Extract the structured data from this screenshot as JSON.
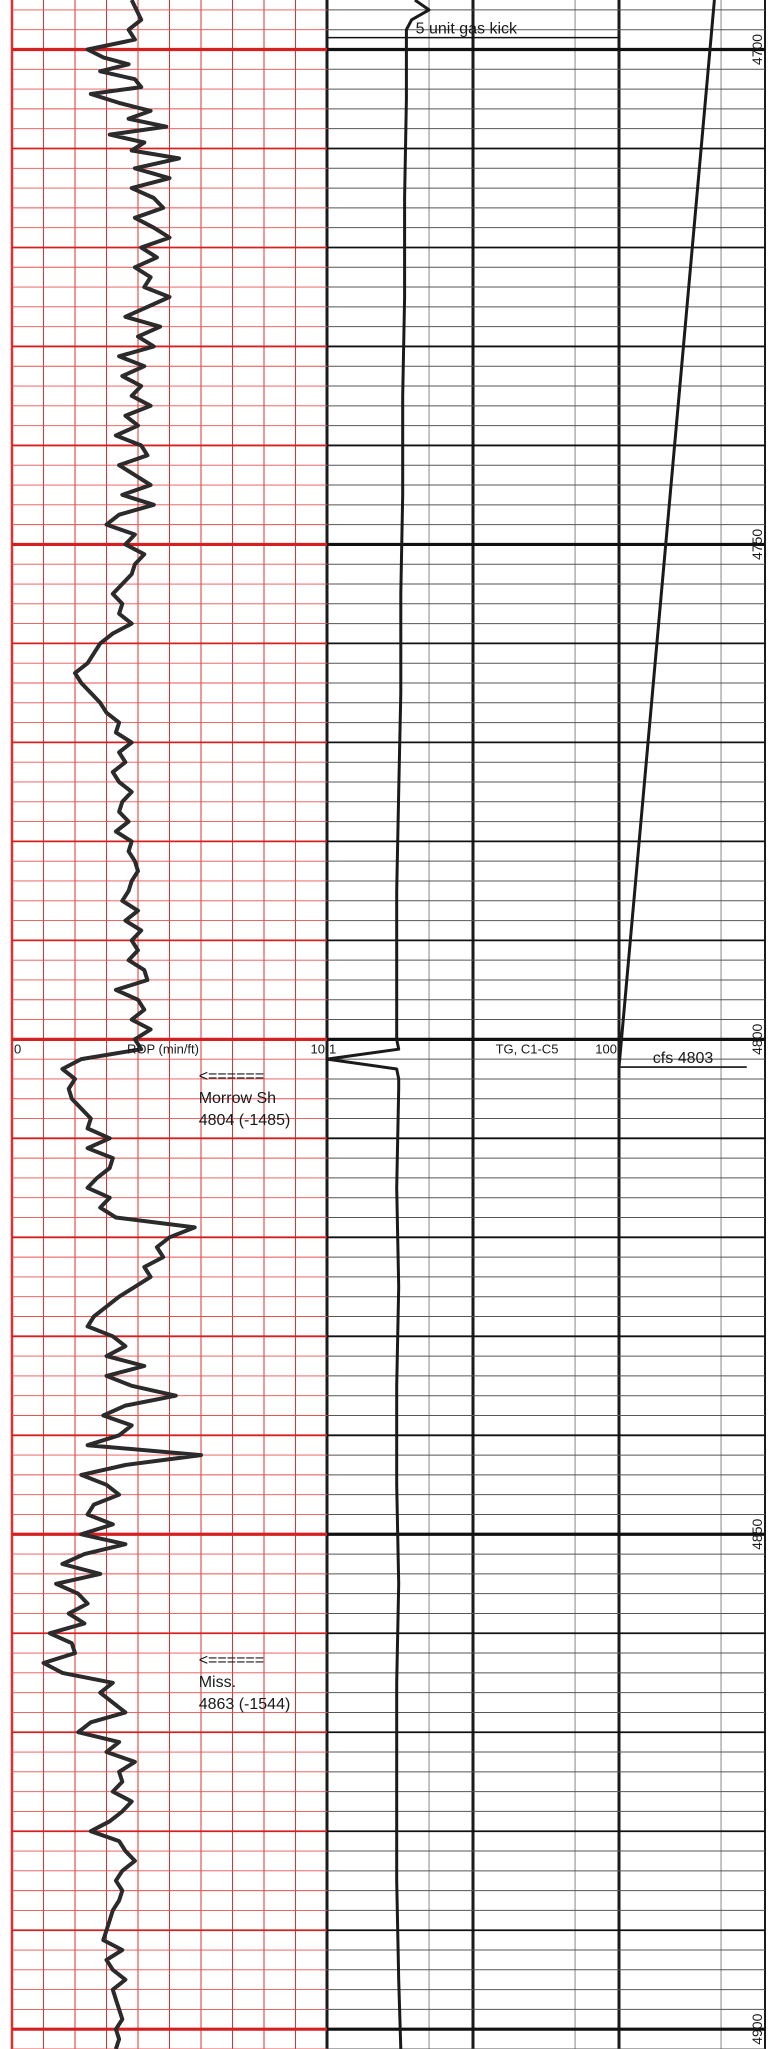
{
  "chart_data": {
    "type": "line",
    "depth_axis": {
      "range": [
        4695,
        4902
      ],
      "ticks": [
        4700,
        4750,
        4800,
        4850,
        4900
      ]
    },
    "tracks": [
      {
        "name": "ROP (min/ft)",
        "scale_label_left": "0",
        "scale_label_right": "10",
        "xlim": [
          0,
          10
        ],
        "x_scale": "linear",
        "grid": true,
        "grid_color": "#e03030",
        "curve_color": "#2b2b2b"
      },
      {
        "name": "TG, C1-C5",
        "scale_label_left": "1",
        "scale_label_right": "100",
        "xlim": [
          1,
          1000
        ],
        "x_scale": "log",
        "grid": true,
        "grid_color": "#444444",
        "curve_color": "#1a1a1a"
      }
    ],
    "series": [
      {
        "track": 0,
        "depth": [
          4695,
          4697,
          4698,
          4699,
          4700,
          4700.8,
          4701.5,
          4702.2,
          4703,
          4703.8,
          4704.5,
          4705.4,
          4706.2,
          4707,
          4707.8,
          4708.6,
          4709.4,
          4710.2,
          4711,
          4712,
          4713,
          4714,
          4715,
          4716,
          4717,
          4718,
          4719,
          4720,
          4721,
          4722,
          4723,
          4724,
          4725,
          4726,
          4727,
          4728,
          4729,
          4730,
          4731,
          4732,
          4733,
          4734,
          4735,
          4736,
          4737,
          4738,
          4739,
          4740,
          4741,
          4742,
          4743,
          4744,
          4745,
          4746,
          4747,
          4748,
          4749,
          4750,
          4751,
          4752,
          4753,
          4754,
          4755,
          4756,
          4757,
          4758,
          4759,
          4760,
          4761,
          4762,
          4763,
          4764,
          4765,
          4766,
          4767,
          4768,
          4769,
          4770,
          4771,
          4772,
          4773,
          4774,
          4775,
          4776,
          4777,
          4778,
          4779,
          4780,
          4781,
          4782,
          4783,
          4784,
          4785,
          4786,
          4787,
          4788,
          4789,
          4790,
          4791,
          4792,
          4793,
          4794,
          4795,
          4796,
          4797,
          4798,
          4799,
          4800,
          4801,
          4802,
          4803,
          4804,
          4805,
          4806,
          4807,
          4808,
          4809,
          4810,
          4811,
          4812,
          4813,
          4814,
          4815,
          4816,
          4817,
          4818,
          4819,
          4820,
          4821,
          4822,
          4823,
          4824,
          4825,
          4826,
          4827,
          4828,
          4829,
          4830,
          4831,
          4832,
          4833,
          4834,
          4835,
          4836,
          4837,
          4838,
          4839,
          4840,
          4841,
          4842,
          4843,
          4844,
          4845,
          4846,
          4847,
          4848,
          4849,
          4850,
          4851,
          4852,
          4853,
          4854,
          4855,
          4856,
          4857,
          4858,
          4859,
          4860,
          4861,
          4862,
          4863,
          4864,
          4865,
          4866,
          4867,
          4868,
          4869,
          4870,
          4871,
          4872,
          4873,
          4874,
          4875,
          4876,
          4877,
          4878,
          4879,
          4880,
          4881,
          4882,
          4883,
          4884,
          4885,
          4886,
          4887,
          4888,
          4889,
          4890,
          4891,
          4892,
          4893,
          4894,
          4895,
          4896,
          4897,
          4898,
          4899,
          4900,
          4901,
          4902
        ],
        "x": [
          3.8,
          4.1,
          3.7,
          3.9,
          2.4,
          2.9,
          3.7,
          2.8,
          3.9,
          4.1,
          2.5,
          3.4,
          4.4,
          3.7,
          4.9,
          3.1,
          4.2,
          3.8,
          5.3,
          3.9,
          5.0,
          3.8,
          4.5,
          4.8,
          3.9,
          4.5,
          5.0,
          4.1,
          4.6,
          3.9,
          4.4,
          4.2,
          5.0,
          4.3,
          3.6,
          4.7,
          4.0,
          4.5,
          3.4,
          4.2,
          3.5,
          4.1,
          3.8,
          4.4,
          3.6,
          4.0,
          3.3,
          4.1,
          4.3,
          3.4,
          3.9,
          4.4,
          3.5,
          4.5,
          3.4,
          3.0,
          3.9,
          3.6,
          4.2,
          3.9,
          3.8,
          3.5,
          3.2,
          3.5,
          3.4,
          3.8,
          3.2,
          2.8,
          2.6,
          2.4,
          2.0,
          2.2,
          2.5,
          2.8,
          3.0,
          3.4,
          3.3,
          3.8,
          3.4,
          3.6,
          3.2,
          3.4,
          3.8,
          3.5,
          3.4,
          3.7,
          3.3,
          3.8,
          3.7,
          3.9,
          4.0,
          3.8,
          3.7,
          3.5,
          4.0,
          3.6,
          4.1,
          3.8,
          4.0,
          3.7,
          4.2,
          4.3,
          3.3,
          4.0,
          4.2,
          3.8,
          4.4,
          3.9,
          4.1,
          2.2,
          1.6,
          2.0,
          1.8,
          1.9,
          2.2,
          2.5,
          2.4,
          3.1,
          2.4,
          3.2,
          3.1,
          2.7,
          2.4,
          3.1,
          2.8,
          3.3,
          5.8,
          5.0,
          4.6,
          4.8,
          4.2,
          4.4,
          3.9,
          3.4,
          3.0,
          2.6,
          2.4,
          3.2,
          3.6,
          3.0,
          4.2,
          3.0,
          3.8,
          5.2,
          3.6,
          2.9,
          3.8,
          3.4,
          2.4,
          6.0,
          3.6,
          2.2,
          3.0,
          3.4,
          2.6,
          2.4,
          3.2,
          2.2,
          3.6,
          2.3,
          1.6,
          2.8,
          1.4,
          2.1,
          2.4,
          1.8,
          2.3,
          1.2,
          1.9,
          2.0,
          1.0,
          1.6,
          3.2,
          2.8,
          3.2,
          3.6,
          2.5,
          2.1,
          3.4,
          3.0,
          3.9,
          3.4,
          3.5,
          3.2,
          3.8,
          3.5,
          3.1,
          2.5,
          3.4,
          3.6,
          3.9,
          3.5,
          3.3,
          3.5,
          3.4,
          3.2,
          3.1,
          3.0,
          2.9,
          3.5,
          3.0,
          3.2,
          3.6,
          3.2,
          3.3,
          3.4,
          3.5,
          3.3,
          3.4,
          3.3,
          3.4
        ]
      },
      {
        "track": 1,
        "depth": [
          4695,
          4696,
          4697,
          4698,
          4699,
          4700,
          4705,
          4715,
          4725,
          4735,
          4745,
          4755,
          4765,
          4775,
          4785,
          4795,
          4800,
          4801,
          4802,
          4803,
          4804,
          4805,
          4815,
          4825,
          4835,
          4845,
          4855,
          4865,
          4875,
          4885,
          4895,
          4902
        ],
        "x": [
          4.0,
          5.0,
          3.8,
          3.5,
          3.5,
          3.5,
          3.5,
          3.4,
          3.4,
          3.3,
          3.3,
          3.2,
          3.2,
          3.1,
          3.0,
          3.0,
          3.0,
          3.1,
          1.0,
          3.0,
          3.1,
          3.1,
          3.0,
          3.1,
          3.0,
          3.0,
          3.1,
          3.0,
          3.0,
          3.0,
          3.1,
          3.2
        ]
      },
      {
        "track": 1,
        "depth": [
          4695,
          4802.8
        ],
        "x": [
          450,
          100
        ]
      }
    ],
    "tops_lines": [
      {
        "depth": 4698.8,
        "track": 1,
        "x_start": 1,
        "x_end": 100
      },
      {
        "depth": 4802.8,
        "track": 1,
        "x_start": 100,
        "x_end": 750
      }
    ],
    "annotations": [
      {
        "depth": 4698.8,
        "track": 1,
        "x": 3.8,
        "lines": [
          "5 unit gas kick"
        ]
      },
      {
        "depth": 4802.8,
        "track": 1,
        "x": 160,
        "lines": [
          "cfs 4803"
        ]
      },
      {
        "depth": 4804,
        "track": 0,
        "x": 5.8,
        "lines": [
          "<======",
          "Morrow Sh",
          "4804 (-1485)"
        ]
      },
      {
        "depth": 4863,
        "track": 0,
        "x": 5.8,
        "lines": [
          "<======",
          "Miss.",
          "4863 (-1544)"
        ]
      }
    ]
  }
}
